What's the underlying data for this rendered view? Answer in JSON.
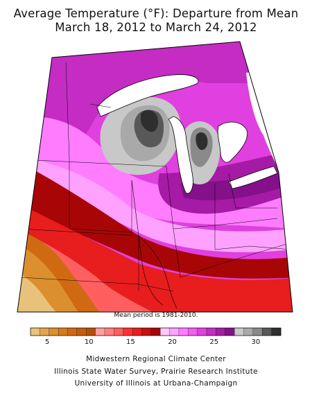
{
  "title_line1": "Average Temperature (°F): Departure from Mean",
  "title_line2": "March 18, 2012 to March 24, 2012",
  "mean_note": "Mean period is 1981-2010.",
  "legend": {
    "ticks": [
      {
        "label": "5",
        "value": 5
      },
      {
        "label": "10",
        "value": 10
      },
      {
        "label": "15",
        "value": 15
      },
      {
        "label": "20",
        "value": 20
      },
      {
        "label": "25",
        "value": 25
      },
      {
        "label": "30",
        "value": 30
      }
    ],
    "min": 3,
    "max": 33,
    "colors": [
      "#e8c27a",
      "#e2a64e",
      "#dc8f2e",
      "#d67a1e",
      "#cf6a12",
      "#c45c0c",
      "#b94d08",
      "#ff9fa0",
      "#ff7f80",
      "#ff5f5f",
      "#ff3030",
      "#e81d1d",
      "#c80f0f",
      "#a80606",
      "#ffc8ff",
      "#ffa2ff",
      "#ff7cff",
      "#f45cf4",
      "#e040e0",
      "#c42cc4",
      "#a51ba5",
      "#84108a",
      "#c8c8c8",
      "#a9a9a9",
      "#8a8a8a",
      "#585858",
      "#2e2e2e"
    ]
  },
  "colors": {
    "lake": "#ffffff",
    "orange_region": "#dc8f2e",
    "red_region": "#e81d1d",
    "darkred_region": "#a80606",
    "pink_region": "#ff7cff",
    "magenta_region": "#e040e0",
    "purple_region": "#a51ba5",
    "gray_region": "#a9a9a9",
    "darkgray_region": "#2e2e2e"
  },
  "credits": [
    "Midwestern Regional Climate Center",
    "Illinois State Water Survey, Prairie Research Institute",
    "University of Illinois at Urbana-Champaign"
  ]
}
